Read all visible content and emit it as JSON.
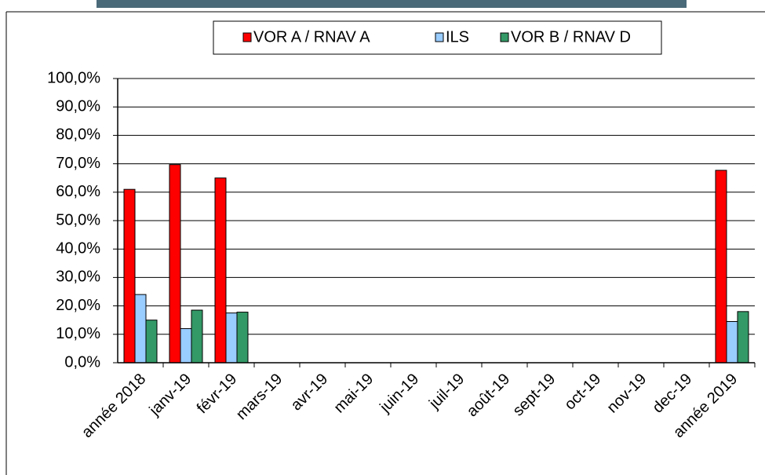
{
  "chart_data": {
    "type": "bar",
    "categories": [
      "année 2018",
      "janv-19",
      "févr-19",
      "mars-19",
      "avr-19",
      "mai-19",
      "juin-19",
      "juil-19",
      "août-19",
      "sept-19",
      "oct-19",
      "nov-19",
      "dec-19",
      "année 2019"
    ],
    "series": [
      {
        "name": "VOR A / RNAV A",
        "color": "#ff0000",
        "values": [
          61,
          69.7,
          65,
          null,
          null,
          null,
          null,
          null,
          null,
          null,
          null,
          null,
          null,
          67.7
        ]
      },
      {
        "name": "ILS",
        "color": "#99ccff",
        "values": [
          24,
          12,
          17.5,
          null,
          null,
          null,
          null,
          null,
          null,
          null,
          null,
          null,
          null,
          14.5
        ]
      },
      {
        "name": "VOR B / RNAV D",
        "color": "#339966",
        "values": [
          15,
          18.5,
          17.8,
          null,
          null,
          null,
          null,
          null,
          null,
          null,
          null,
          null,
          null,
          18
        ]
      }
    ],
    "ylim": [
      0,
      100
    ],
    "yticks": [
      {
        "value": 0,
        "label": "0,0%"
      },
      {
        "value": 10,
        "label": "10,0%"
      },
      {
        "value": 20,
        "label": "20,0%"
      },
      {
        "value": 30,
        "label": "30,0%"
      },
      {
        "value": 40,
        "label": "40,0%"
      },
      {
        "value": 50,
        "label": "50,0%"
      },
      {
        "value": 60,
        "label": "60,0%"
      },
      {
        "value": 70,
        "label": "70,0%"
      },
      {
        "value": 80,
        "label": "80,0%"
      },
      {
        "value": 90,
        "label": "90,0%"
      },
      {
        "value": 100,
        "label": "100,0%"
      }
    ],
    "grid": true
  }
}
